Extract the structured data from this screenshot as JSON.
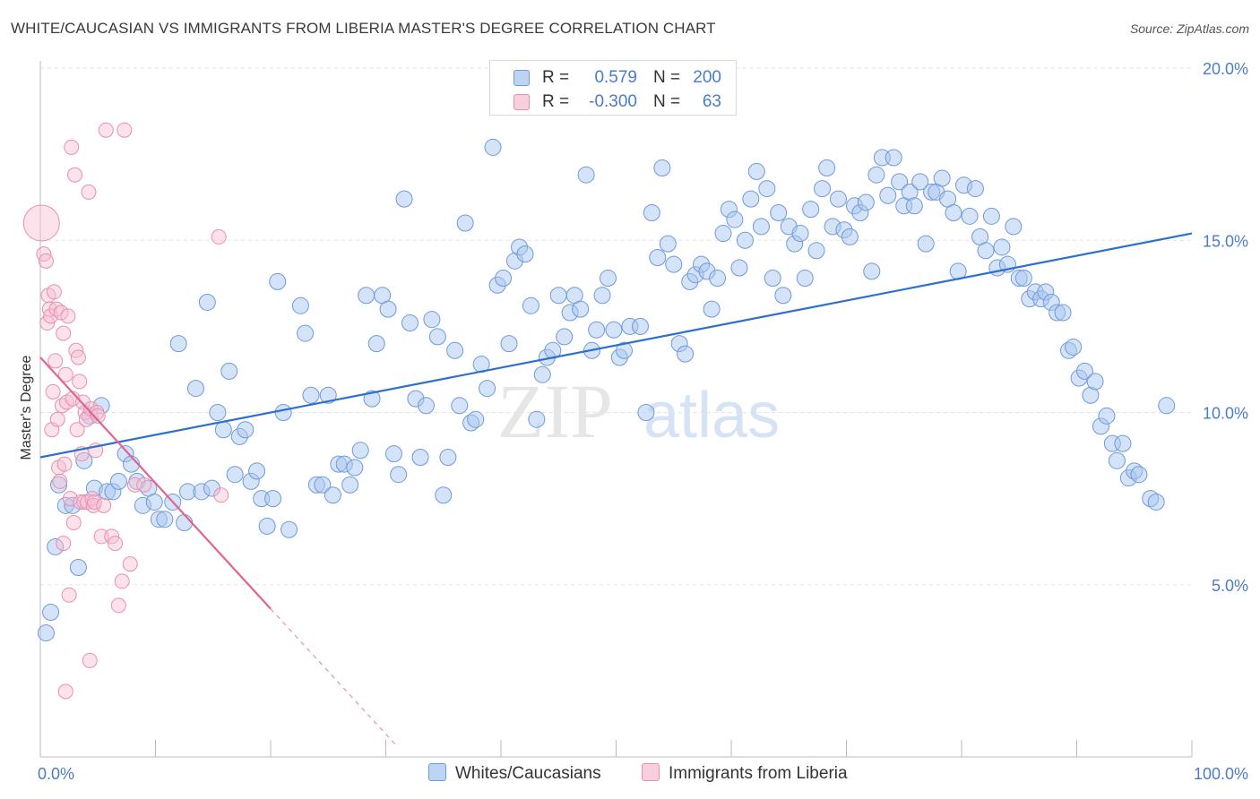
{
  "title": "WHITE/CAUCASIAN VS IMMIGRANTS FROM LIBERIA MASTER'S DEGREE CORRELATION CHART",
  "source": "Source: ZipAtlas.com",
  "watermark": {
    "zip": "ZIP",
    "atlas": "atlas"
  },
  "colors": {
    "blue_fill": "#a9c7ef",
    "blue_stroke": "#6f9ad8",
    "blue_line": "#2d6fcc",
    "pink_fill": "#f7bfd2",
    "pink_stroke": "#e98fae",
    "pink_line": "#e0648f",
    "tick_text": "#4a7cc9",
    "grid": "#e3e3e3"
  },
  "legend": {
    "series": [
      {
        "r_label": "R =",
        "r_value": "0.579",
        "n_label": "N =",
        "n_value": "200"
      },
      {
        "r_label": "R =",
        "r_value": "-0.300",
        "n_label": "N =",
        "n_value": "63"
      }
    ]
  },
  "bottom_legend": [
    "Whites/Caucasians",
    "Immigrants from Liberia"
  ],
  "chart_data": {
    "type": "scatter",
    "title": "WHITE/CAUCASIAN VS IMMIGRANTS FROM LIBERIA MASTER'S DEGREE CORRELATION CHART",
    "xlabel": "",
    "ylabel": "Master's Degree",
    "xlim": [
      0,
      100
    ],
    "ylim": [
      0,
      20
    ],
    "x_tick_labels": [
      "0.0%",
      "100.0%"
    ],
    "y_ticks": [
      5,
      10,
      15,
      20
    ],
    "y_tick_labels": [
      "5.0%",
      "10.0%",
      "15.0%",
      "20.0%"
    ],
    "grid": true,
    "legend_position": "top-center",
    "series": [
      {
        "name": "Whites/Caucasians",
        "r": 0.579,
        "n": 200,
        "trend": {
          "x": [
            0,
            100
          ],
          "y": [
            8.7,
            15.2
          ]
        },
        "points": [
          [
            0.5,
            3.6
          ],
          [
            0.9,
            4.2
          ],
          [
            1.3,
            6.1
          ],
          [
            1.6,
            7.9
          ],
          [
            2.2,
            7.3
          ],
          [
            2.8,
            7.3
          ],
          [
            3.3,
            5.5
          ],
          [
            3.8,
            8.6
          ],
          [
            4.3,
            9.9
          ],
          [
            4.7,
            7.8
          ],
          [
            5.3,
            10.2
          ],
          [
            5.8,
            7.7
          ],
          [
            6.3,
            7.7
          ],
          [
            6.8,
            8.0
          ],
          [
            7.4,
            8.8
          ],
          [
            7.9,
            8.5
          ],
          [
            8.4,
            8.0
          ],
          [
            8.9,
            7.3
          ],
          [
            9.4,
            7.8
          ],
          [
            9.9,
            7.4
          ],
          [
            10.3,
            6.9
          ],
          [
            10.8,
            6.9
          ],
          [
            11.5,
            7.4
          ],
          [
            12.0,
            12.0
          ],
          [
            12.5,
            6.8
          ],
          [
            12.8,
            7.7
          ],
          [
            13.5,
            10.7
          ],
          [
            14.0,
            7.7
          ],
          [
            14.5,
            13.2
          ],
          [
            14.9,
            7.8
          ],
          [
            15.4,
            10.0
          ],
          [
            15.9,
            9.5
          ],
          [
            16.4,
            11.2
          ],
          [
            16.9,
            8.2
          ],
          [
            17.3,
            9.3
          ],
          [
            17.8,
            9.5
          ],
          [
            18.3,
            8.0
          ],
          [
            18.8,
            8.3
          ],
          [
            19.2,
            7.5
          ],
          [
            19.7,
            6.7
          ],
          [
            20.2,
            7.5
          ],
          [
            20.6,
            13.8
          ],
          [
            21.1,
            10.0
          ],
          [
            21.6,
            6.6
          ],
          [
            22.6,
            13.1
          ],
          [
            23.0,
            12.3
          ],
          [
            23.5,
            10.5
          ],
          [
            24.0,
            7.9
          ],
          [
            24.5,
            7.9
          ],
          [
            25.0,
            10.5
          ],
          [
            25.4,
            7.6
          ],
          [
            25.9,
            8.5
          ],
          [
            26.4,
            8.5
          ],
          [
            26.9,
            7.9
          ],
          [
            27.3,
            8.4
          ],
          [
            27.8,
            8.9
          ],
          [
            28.3,
            13.4
          ],
          [
            28.8,
            10.4
          ],
          [
            29.2,
            12.0
          ],
          [
            29.7,
            13.4
          ],
          [
            30.2,
            13.0
          ],
          [
            30.7,
            8.8
          ],
          [
            31.1,
            8.2
          ],
          [
            31.6,
            16.2
          ],
          [
            32.1,
            12.6
          ],
          [
            32.6,
            10.4
          ],
          [
            33.0,
            8.7
          ],
          [
            33.5,
            10.2
          ],
          [
            34.0,
            12.7
          ],
          [
            34.5,
            12.2
          ],
          [
            35.0,
            7.6
          ],
          [
            35.4,
            8.7
          ],
          [
            36.0,
            11.8
          ],
          [
            36.4,
            10.2
          ],
          [
            36.9,
            15.5
          ],
          [
            37.4,
            9.7
          ],
          [
            37.8,
            9.8
          ],
          [
            38.3,
            11.4
          ],
          [
            38.8,
            10.7
          ],
          [
            39.3,
            17.7
          ],
          [
            39.7,
            13.7
          ],
          [
            40.2,
            13.9
          ],
          [
            40.7,
            12.0
          ],
          [
            41.2,
            14.4
          ],
          [
            41.6,
            14.8
          ],
          [
            42.1,
            14.6
          ],
          [
            42.6,
            13.1
          ],
          [
            43.1,
            9.8
          ],
          [
            43.6,
            11.1
          ],
          [
            44.0,
            11.6
          ],
          [
            44.5,
            11.8
          ],
          [
            45.0,
            13.4
          ],
          [
            45.5,
            12.2
          ],
          [
            46.0,
            12.9
          ],
          [
            46.4,
            13.4
          ],
          [
            46.9,
            13.0
          ],
          [
            47.4,
            16.9
          ],
          [
            47.9,
            11.8
          ],
          [
            48.3,
            12.4
          ],
          [
            48.8,
            13.4
          ],
          [
            49.3,
            13.9
          ],
          [
            49.8,
            12.4
          ],
          [
            50.3,
            11.6
          ],
          [
            50.7,
            11.8
          ],
          [
            51.2,
            12.5
          ],
          [
            52.1,
            12.5
          ],
          [
            52.6,
            10.0
          ],
          [
            53.1,
            15.8
          ],
          [
            53.6,
            14.5
          ],
          [
            54.0,
            17.1
          ],
          [
            54.5,
            14.9
          ],
          [
            55.0,
            14.3
          ],
          [
            55.5,
            12.0
          ],
          [
            56.0,
            11.7
          ],
          [
            56.4,
            13.8
          ],
          [
            56.9,
            14.0
          ],
          [
            57.4,
            14.3
          ],
          [
            57.9,
            14.1
          ],
          [
            58.3,
            13.0
          ],
          [
            58.8,
            13.9
          ],
          [
            59.3,
            15.2
          ],
          [
            59.8,
            15.9
          ],
          [
            60.3,
            15.6
          ],
          [
            60.7,
            14.2
          ],
          [
            61.2,
            15.0
          ],
          [
            61.7,
            16.2
          ],
          [
            62.2,
            17.0
          ],
          [
            62.6,
            15.4
          ],
          [
            63.1,
            16.5
          ],
          [
            63.6,
            13.9
          ],
          [
            64.1,
            15.8
          ],
          [
            64.5,
            13.4
          ],
          [
            65.0,
            15.4
          ],
          [
            65.5,
            14.9
          ],
          [
            66.0,
            15.2
          ],
          [
            66.4,
            13.9
          ],
          [
            66.9,
            15.9
          ],
          [
            67.4,
            14.7
          ],
          [
            67.9,
            16.5
          ],
          [
            68.3,
            17.1
          ],
          [
            68.8,
            15.4
          ],
          [
            69.3,
            16.2
          ],
          [
            69.8,
            15.3
          ],
          [
            70.3,
            15.1
          ],
          [
            70.7,
            16.0
          ],
          [
            71.2,
            15.8
          ],
          [
            71.7,
            16.1
          ],
          [
            72.2,
            14.1
          ],
          [
            72.6,
            16.9
          ],
          [
            73.1,
            17.4
          ],
          [
            73.6,
            16.3
          ],
          [
            74.1,
            17.4
          ],
          [
            74.6,
            16.7
          ],
          [
            75.0,
            16.0
          ],
          [
            75.5,
            16.4
          ],
          [
            75.9,
            16.0
          ],
          [
            76.4,
            16.7
          ],
          [
            76.9,
            14.9
          ],
          [
            77.4,
            16.4
          ],
          [
            77.8,
            16.4
          ],
          [
            78.3,
            16.8
          ],
          [
            78.8,
            16.2
          ],
          [
            79.3,
            15.8
          ],
          [
            79.7,
            14.1
          ],
          [
            80.2,
            16.6
          ],
          [
            80.7,
            15.7
          ],
          [
            81.2,
            16.5
          ],
          [
            81.6,
            15.1
          ],
          [
            82.1,
            14.7
          ],
          [
            82.6,
            15.7
          ],
          [
            83.1,
            14.2
          ],
          [
            83.5,
            14.8
          ],
          [
            84.0,
            14.3
          ],
          [
            84.5,
            15.4
          ],
          [
            85.0,
            13.9
          ],
          [
            85.4,
            13.9
          ],
          [
            85.9,
            13.3
          ],
          [
            86.4,
            13.5
          ],
          [
            86.9,
            13.3
          ],
          [
            87.3,
            13.5
          ],
          [
            87.8,
            13.2
          ],
          [
            88.3,
            12.9
          ],
          [
            88.8,
            12.9
          ],
          [
            89.3,
            11.8
          ],
          [
            89.7,
            11.9
          ],
          [
            90.2,
            11.0
          ],
          [
            90.7,
            11.2
          ],
          [
            91.2,
            10.5
          ],
          [
            91.6,
            10.9
          ],
          [
            92.1,
            9.6
          ],
          [
            92.6,
            9.9
          ],
          [
            93.1,
            9.1
          ],
          [
            93.5,
            8.6
          ],
          [
            94.0,
            9.1
          ],
          [
            94.5,
            8.1
          ],
          [
            95.0,
            8.3
          ],
          [
            95.4,
            8.2
          ],
          [
            96.4,
            7.5
          ],
          [
            96.9,
            7.4
          ],
          [
            97.8,
            10.2
          ]
        ]
      },
      {
        "name": "Immigrants from Liberia",
        "r": -0.3,
        "n": 63,
        "trend": {
          "x": [
            0,
            20
          ],
          "y": [
            11.6,
            4.3
          ]
        },
        "trend_dashed_extension": {
          "x": [
            20,
            31
          ],
          "y": [
            4.3,
            0.3
          ]
        },
        "points": [
          [
            0.1,
            15.5
          ],
          [
            0.3,
            14.6
          ],
          [
            0.5,
            14.4
          ],
          [
            0.6,
            12.6
          ],
          [
            0.7,
            13.4
          ],
          [
            0.8,
            13.0
          ],
          [
            0.9,
            12.8
          ],
          [
            1.0,
            9.5
          ],
          [
            1.1,
            10.6
          ],
          [
            1.2,
            13.5
          ],
          [
            1.3,
            11.5
          ],
          [
            1.4,
            13.0
          ],
          [
            1.5,
            9.8
          ],
          [
            1.6,
            8.4
          ],
          [
            1.7,
            8.0
          ],
          [
            1.8,
            12.9
          ],
          [
            1.9,
            10.2
          ],
          [
            2.0,
            12.3
          ],
          [
            2.1,
            8.5
          ],
          [
            2.2,
            11.1
          ],
          [
            2.3,
            10.3
          ],
          [
            2.4,
            12.8
          ],
          [
            2.5,
            4.7
          ],
          [
            2.6,
            7.5
          ],
          [
            2.7,
            17.7
          ],
          [
            2.8,
            10.4
          ],
          [
            2.9,
            6.8
          ],
          [
            3.0,
            16.9
          ],
          [
            3.1,
            11.8
          ],
          [
            3.2,
            9.5
          ],
          [
            3.3,
            11.6
          ],
          [
            3.4,
            10.9
          ],
          [
            3.5,
            7.4
          ],
          [
            3.6,
            8.8
          ],
          [
            3.7,
            10.3
          ],
          [
            3.8,
            7.4
          ],
          [
            3.9,
            10.0
          ],
          [
            4.0,
            9.8
          ],
          [
            4.1,
            7.4
          ],
          [
            4.2,
            16.4
          ],
          [
            4.3,
            2.8
          ],
          [
            4.4,
            10.1
          ],
          [
            4.5,
            7.5
          ],
          [
            4.6,
            7.3
          ],
          [
            4.7,
            7.4
          ],
          [
            4.8,
            8.9
          ],
          [
            4.9,
            10.0
          ],
          [
            5.0,
            9.9
          ],
          [
            5.3,
            6.4
          ],
          [
            5.5,
            7.3
          ],
          [
            5.7,
            18.2
          ],
          [
            6.2,
            6.4
          ],
          [
            6.5,
            6.2
          ],
          [
            6.8,
            4.4
          ],
          [
            7.1,
            5.1
          ],
          [
            7.3,
            18.2
          ],
          [
            7.8,
            5.6
          ],
          [
            8.2,
            7.9
          ],
          [
            9.0,
            7.9
          ],
          [
            15.5,
            15.1
          ],
          [
            15.7,
            7.6
          ],
          [
            2.2,
            1.9
          ],
          [
            2.0,
            6.2
          ]
        ]
      }
    ]
  }
}
